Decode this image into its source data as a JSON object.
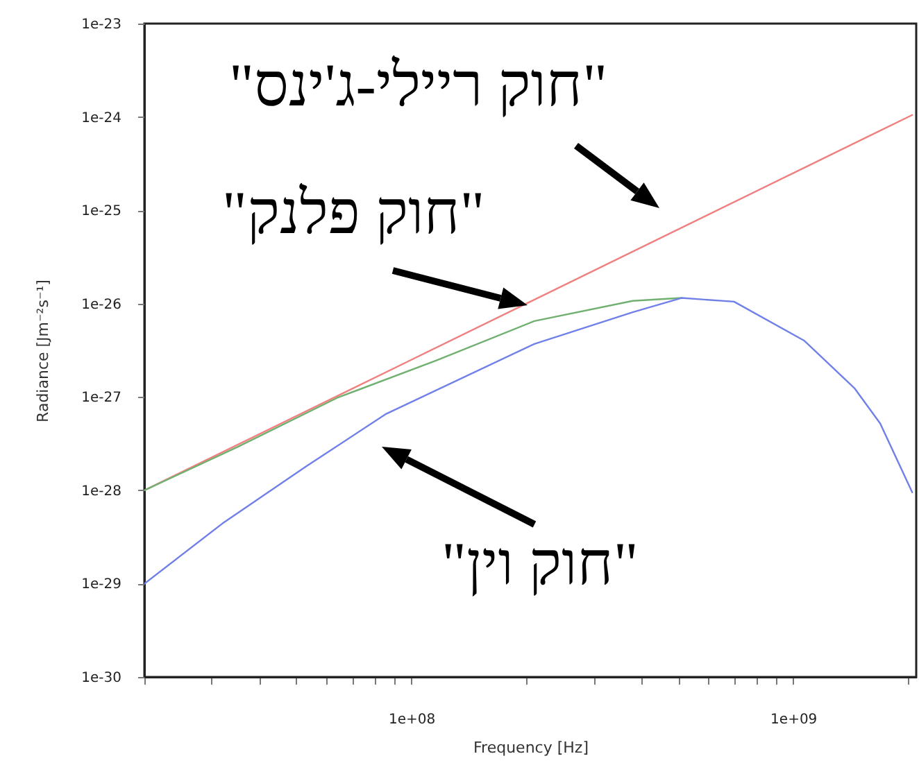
{
  "chart_data": {
    "type": "line",
    "xlabel": "Frequency [Hz]",
    "ylabel": "Radiance [Jm⁻²s⁻¹]",
    "log": "xy",
    "xlim": [
      20000000.0,
      2100000000.0
    ],
    "ylim": [
      1e-30,
      1e-23
    ],
    "xticks": [
      {
        "value": 20000000.0,
        "label": null
      },
      {
        "value": 30000000.0,
        "label": null
      },
      {
        "value": 40000000.0,
        "label": null
      },
      {
        "value": 50000000.0,
        "label": null
      },
      {
        "value": 60000000.0,
        "label": null
      },
      {
        "value": 70000000.0,
        "label": null
      },
      {
        "value": 80000000.0,
        "label": null
      },
      {
        "value": 90000000.0,
        "label": null
      },
      {
        "value": 100000000.0,
        "label": "1e+08"
      },
      {
        "value": 200000000.0,
        "label": null
      },
      {
        "value": 300000000.0,
        "label": null
      },
      {
        "value": 400000000.0,
        "label": null
      },
      {
        "value": 500000000.0,
        "label": null
      },
      {
        "value": 600000000.0,
        "label": null
      },
      {
        "value": 700000000.0,
        "label": null
      },
      {
        "value": 800000000.0,
        "label": null
      },
      {
        "value": 900000000.0,
        "label": null
      },
      {
        "value": 1000000000.0,
        "label": "1e+09"
      },
      {
        "value": 2000000000.0,
        "label": null
      }
    ],
    "yticks": [
      {
        "value": 1e-30,
        "label": "1e-30"
      },
      {
        "value": 1e-29,
        "label": "1e-29"
      },
      {
        "value": 1e-28,
        "label": "1e-28"
      },
      {
        "value": 1e-27,
        "label": "1e-27"
      },
      {
        "value": 1e-26,
        "label": "1e-26"
      },
      {
        "value": 1e-25,
        "label": "1e-25"
      },
      {
        "value": 1e-24,
        "label": "1e-24"
      },
      {
        "value": 1e-23,
        "label": "1e-23"
      }
    ],
    "grid": false,
    "marker": "none",
    "line_style": "solid",
    "series": [
      {
        "name": "\"חוק ריילי-ג'ינס\"",
        "color": "#f08080",
        "x": [
          20000000.0,
          100000000.0,
          1000000000.0,
          2050000000.0
        ],
        "values": [
          1e-28,
          2.5e-27,
          2.5e-25,
          1.05e-24
        ]
      },
      {
        "name": "\"חוק פלנק\"",
        "color": "#70b070",
        "x": [
          20000000.0,
          35000000.0,
          64000000.0,
          116000000.0,
          210000000.0,
          380000000.0,
          510000000.0
        ],
        "values": [
          1e-28,
          2.9e-28,
          9.8e-28,
          2.45e-27,
          6.5e-27,
          1.07e-26,
          1.15e-26
        ]
      },
      {
        "name": "\"חוק וין\"",
        "color": "#7080e8",
        "x": [
          20000000.0,
          32000000.0,
          53000000.0,
          86000000.0,
          210000000.0,
          380000000.0,
          510000000.0,
          700000000.0,
          1070000000.0,
          1450000000.0,
          1690000000.0,
          2050000000.0
        ],
        "values": [
          1e-29,
          4.4e-29,
          1.8e-28,
          6.6e-28,
          3.7e-27,
          8.1e-27,
          1.15e-26,
          1.05e-26,
          4e-27,
          1.23e-27,
          5.2e-28,
          9.5e-29
        ]
      }
    ]
  }
}
